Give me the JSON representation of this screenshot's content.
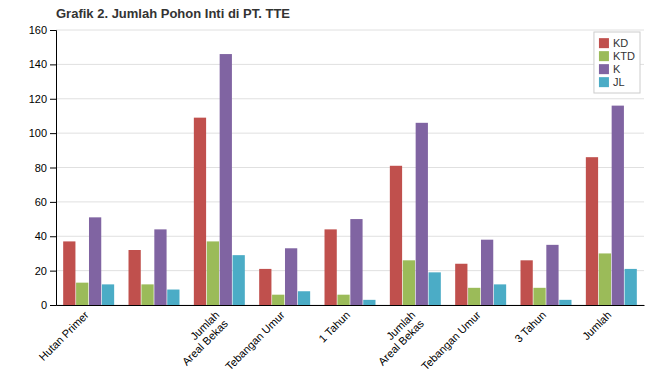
{
  "chart_data": {
    "type": "bar",
    "title": "Grafik 2. Jumlah Pohon Inti di PT. TTE",
    "categories": [
      "Hutan Primer",
      null,
      "Jumlah\nAreal Bekas",
      "Tebangan Umur",
      "1 Tahun",
      "Jumlah\nAreal Bekas",
      "Tebangan Umur",
      "3 Tahun",
      "Jumlah"
    ],
    "series": [
      {
        "name": "KD",
        "color": "#C0504D",
        "values": [
          37,
          32,
          109,
          21,
          44,
          81,
          24,
          26,
          86
        ]
      },
      {
        "name": "KTD",
        "color": "#9BBB59",
        "values": [
          13,
          12,
          37,
          6,
          6,
          26,
          10,
          10,
          30
        ]
      },
      {
        "name": "K",
        "color": "#8064A2",
        "values": [
          51,
          44,
          146,
          33,
          50,
          106,
          38,
          35,
          116
        ]
      },
      {
        "name": "JL",
        "color": "#4BACC6",
        "values": [
          12,
          9,
          29,
          8,
          3,
          19,
          12,
          3,
          21
        ]
      }
    ],
    "ylim": [
      0,
      160
    ],
    "yticks": [
      0,
      20,
      40,
      60,
      80,
      100,
      120,
      140,
      160
    ],
    "grid": true,
    "legend": "upper right"
  }
}
